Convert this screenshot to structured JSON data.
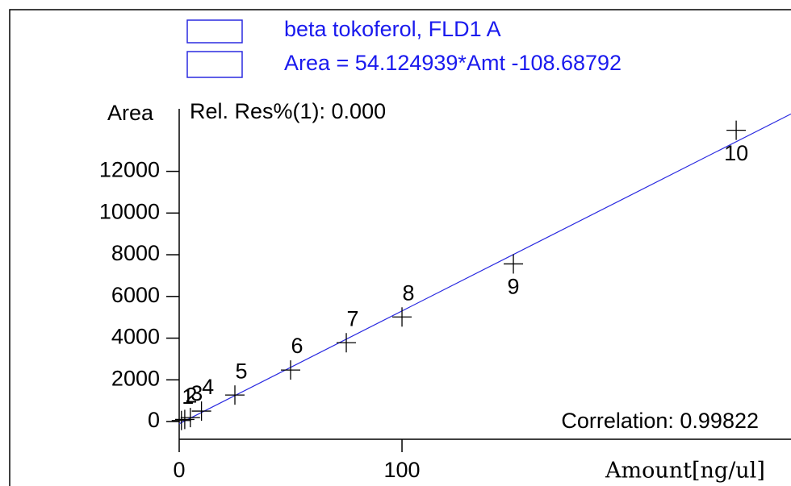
{
  "chart_data": {
    "type": "scatter",
    "legend": [
      "beta tokoferol, FLD1 A",
      "Area = 54.124939*Amt -108.68792"
    ],
    "annotations": [
      "Rel. Res%(1): 0.000",
      "Correlation: 0.99822"
    ],
    "ylabel": "Area",
    "xlabel": "Amount[ng/ul]",
    "fit": {
      "slope": 54.124939,
      "intercept": -108.68792
    },
    "point_labels": [
      "1",
      "2",
      "3",
      "4",
      "5",
      "6",
      "7",
      "8",
      "9",
      "10"
    ],
    "x": [
      1,
      2.5,
      5,
      10,
      25,
      50,
      75,
      100,
      150,
      250
    ],
    "values": [
      50,
      100,
      190,
      500,
      1270,
      2470,
      3780,
      5015,
      7560,
      13970
    ],
    "color": "#000000",
    "line_color": "#2a2ae0",
    "xlim": [
      0,
      274.6
    ],
    "ylim": [
      -850,
      15000
    ],
    "xticks": [
      0,
      100
    ],
    "yticks": [
      0,
      2000,
      4000,
      6000,
      8000,
      10000,
      12000
    ]
  }
}
